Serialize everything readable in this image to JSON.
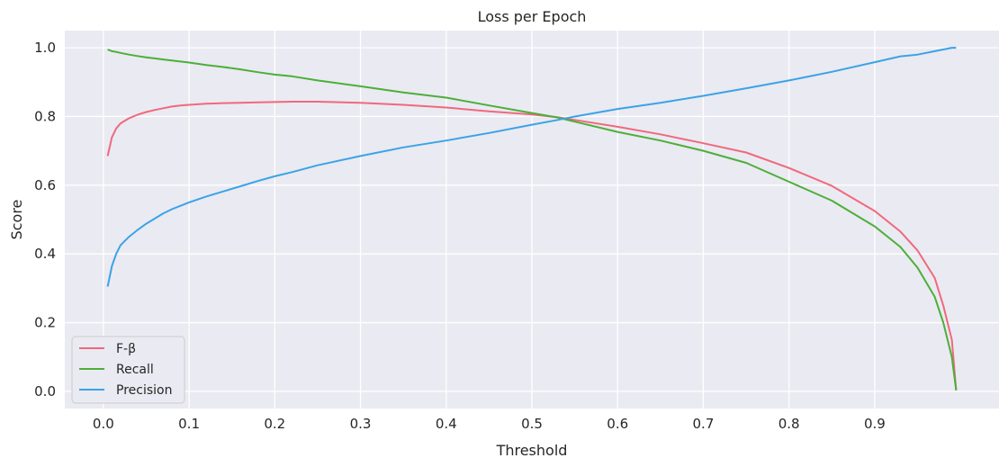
{
  "chart_data": {
    "type": "line",
    "title": "Loss per Epoch",
    "xlabel": "Threshold",
    "ylabel": "Score",
    "xlim": [
      -0.045,
      1.045
    ],
    "ylim": [
      -0.05,
      1.05
    ],
    "x_ticks": [
      0.0,
      0.1,
      0.2,
      0.3,
      0.4,
      0.5,
      0.6,
      0.7,
      0.8,
      0.9
    ],
    "x_tick_labels": [
      "0.0",
      "0.1",
      "0.2",
      "0.3",
      "0.4",
      "0.5",
      "0.6",
      "0.7",
      "0.8",
      "0.9"
    ],
    "y_ticks": [
      0.0,
      0.2,
      0.4,
      0.6,
      0.8,
      1.0
    ],
    "y_tick_labels": [
      "0.0",
      "0.2",
      "0.4",
      "0.6",
      "0.8",
      "1.0"
    ],
    "grid": true,
    "background": "#eaeaf2",
    "legend_position": "lower-left",
    "x": [
      0.005,
      0.01,
      0.015,
      0.02,
      0.03,
      0.04,
      0.05,
      0.06,
      0.07,
      0.08,
      0.09,
      0.1,
      0.12,
      0.14,
      0.16,
      0.18,
      0.2,
      0.22,
      0.25,
      0.3,
      0.35,
      0.4,
      0.45,
      0.5,
      0.53,
      0.55,
      0.6,
      0.65,
      0.7,
      0.75,
      0.8,
      0.85,
      0.9,
      0.93,
      0.95,
      0.97,
      0.98,
      0.99,
      0.995
    ],
    "series": [
      {
        "name": "F-β",
        "color": "#f0697c",
        "values": [
          0.685,
          0.74,
          0.765,
          0.78,
          0.795,
          0.805,
          0.813,
          0.819,
          0.824,
          0.829,
          0.832,
          0.834,
          0.837,
          0.839,
          0.84,
          0.841,
          0.842,
          0.843,
          0.843,
          0.84,
          0.834,
          0.826,
          0.815,
          0.806,
          0.798,
          0.79,
          0.77,
          0.748,
          0.722,
          0.695,
          0.65,
          0.598,
          0.525,
          0.465,
          0.41,
          0.33,
          0.25,
          0.15,
          0.003
        ]
      },
      {
        "name": "Recall",
        "color": "#4caf39",
        "values": [
          0.995,
          0.99,
          0.988,
          0.985,
          0.98,
          0.976,
          0.972,
          0.969,
          0.966,
          0.963,
          0.96,
          0.957,
          0.95,
          0.944,
          0.937,
          0.929,
          0.922,
          0.917,
          0.905,
          0.888,
          0.87,
          0.855,
          0.832,
          0.81,
          0.797,
          0.785,
          0.755,
          0.73,
          0.7,
          0.665,
          0.61,
          0.555,
          0.48,
          0.42,
          0.36,
          0.275,
          0.2,
          0.1,
          0.003
        ]
      },
      {
        "name": "Precision",
        "color": "#3ba3e6",
        "values": [
          0.305,
          0.365,
          0.4,
          0.425,
          0.45,
          0.47,
          0.488,
          0.503,
          0.518,
          0.53,
          0.54,
          0.55,
          0.567,
          0.582,
          0.597,
          0.612,
          0.626,
          0.638,
          0.658,
          0.685,
          0.71,
          0.73,
          0.752,
          0.776,
          0.79,
          0.8,
          0.822,
          0.84,
          0.86,
          0.882,
          0.905,
          0.93,
          0.958,
          0.975,
          0.98,
          0.99,
          0.995,
          1.0,
          1.0
        ]
      }
    ]
  }
}
